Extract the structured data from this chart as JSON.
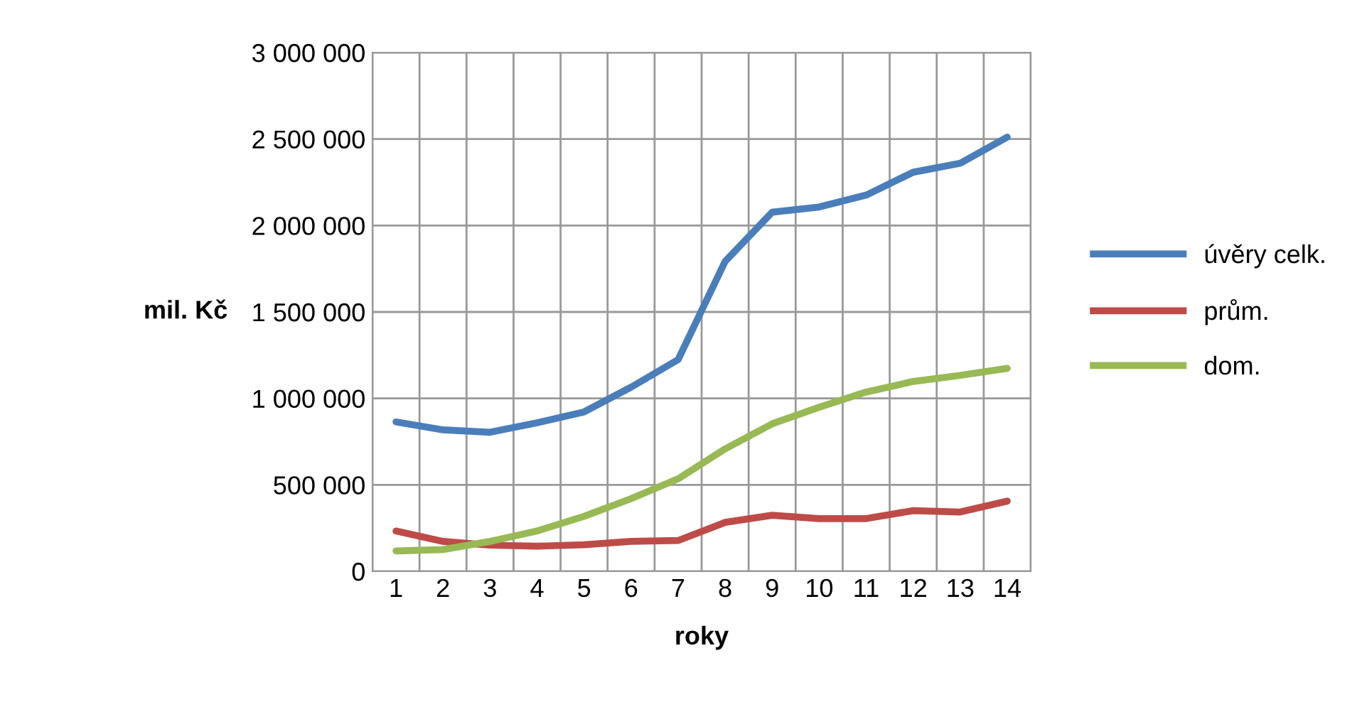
{
  "chart_data": {
    "type": "line",
    "xlabel": "roky",
    "ylabel": "mil. Kč",
    "categories": [
      "1",
      "2",
      "3",
      "4",
      "5",
      "6",
      "7",
      "8",
      "9",
      "10",
      "11",
      "12",
      "13",
      "14"
    ],
    "series": [
      {
        "name": "úvěry celk.",
        "color": "#4a7ebb",
        "values": [
          864000,
          818000,
          804000,
          859000,
          922000,
          1065000,
          1224000,
          1792000,
          2077000,
          2107000,
          2176000,
          2308000,
          2360000,
          2511000
        ]
      },
      {
        "name": "prům.",
        "color": "#be4b48",
        "values": [
          233000,
          173000,
          151000,
          145000,
          154000,
          173000,
          178000,
          283000,
          324000,
          305000,
          305000,
          351000,
          343000,
          406000
        ]
      },
      {
        "name": "dom.",
        "color": "#98b954",
        "values": [
          118000,
          126000,
          173000,
          233000,
          318000,
          420000,
          535000,
          708000,
          853000,
          949000,
          1037000,
          1098000,
          1133000,
          1174000
        ]
      }
    ],
    "ylim": [
      0,
      3000000
    ],
    "yticks": [
      {
        "value": 0,
        "label": "0"
      },
      {
        "value": 500000,
        "label": "500 000"
      },
      {
        "value": 1000000,
        "label": "1 000 000"
      },
      {
        "value": 1500000,
        "label": "1 500 000"
      },
      {
        "value": 2000000,
        "label": "2 000 000"
      },
      {
        "value": 2500000,
        "label": "2 500 000"
      },
      {
        "value": 3000000,
        "label": "3 000 000"
      }
    ],
    "grid": true,
    "legend": "right",
    "marker": "none",
    "line_style": "solid"
  }
}
